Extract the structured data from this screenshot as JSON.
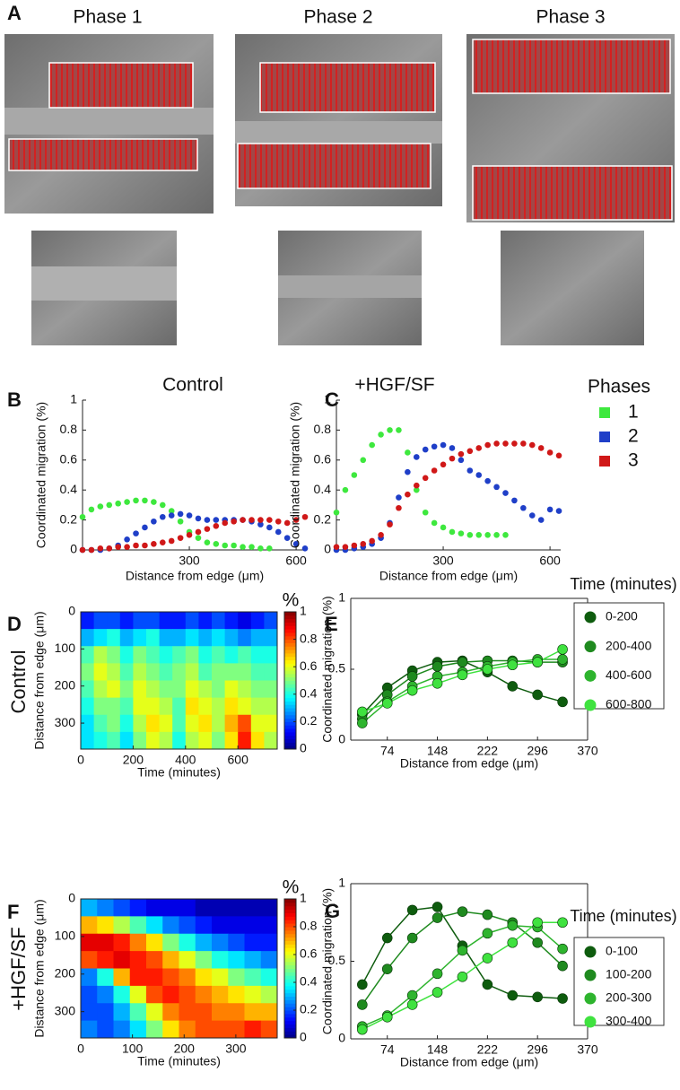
{
  "figure": {
    "panel": "A",
    "image_titles": [
      "Phase 1",
      "Phase 2",
      "Phase 3"
    ]
  },
  "chart_data": [
    {
      "type": "scatter",
      "panel": "B",
      "title": "Control",
      "x_label": "Distance from edge (μm)",
      "y_label": "Coordinated migration (%)",
      "xlim": [
        0,
        630
      ],
      "xticks": [
        300,
        600
      ],
      "ylim": [
        0,
        1
      ],
      "yticks": [
        0,
        0.2,
        0.4,
        0.6,
        0.8,
        1
      ],
      "series": [
        {
          "color": "#3ee83e",
          "x": [
            0,
            25,
            50,
            75,
            100,
            125,
            150,
            175,
            200,
            225,
            250,
            275,
            300,
            325,
            350,
            375,
            400,
            425,
            450,
            475,
            500,
            525
          ],
          "values": [
            0.22,
            0.27,
            0.29,
            0.3,
            0.31,
            0.32,
            0.33,
            0.33,
            0.32,
            0.3,
            0.26,
            0.19,
            0.12,
            0.08,
            0.05,
            0.04,
            0.03,
            0.03,
            0.02,
            0.02,
            0.01,
            0.01
          ]
        },
        {
          "color": "#1f3fc8",
          "x": [
            0,
            25,
            50,
            75,
            100,
            125,
            150,
            175,
            200,
            225,
            250,
            275,
            300,
            325,
            350,
            375,
            400,
            425,
            450,
            475,
            500,
            525,
            550,
            575,
            600,
            625
          ],
          "values": [
            0,
            0,
            0,
            0.01,
            0.03,
            0.07,
            0.11,
            0.15,
            0.19,
            0.22,
            0.23,
            0.24,
            0.23,
            0.21,
            0.2,
            0.2,
            0.2,
            0.2,
            0.2,
            0.19,
            0.17,
            0.15,
            0.12,
            0.08,
            0.04,
            0.01
          ]
        },
        {
          "color": "#d01818",
          "x": [
            0,
            25,
            50,
            75,
            100,
            125,
            150,
            175,
            200,
            225,
            250,
            275,
            300,
            325,
            350,
            375,
            400,
            425,
            450,
            475,
            500,
            525,
            550,
            575,
            600,
            625
          ],
          "values": [
            0,
            0,
            0.01,
            0.01,
            0.02,
            0.02,
            0.03,
            0.03,
            0.04,
            0.05,
            0.06,
            0.08,
            0.1,
            0.12,
            0.14,
            0.16,
            0.18,
            0.19,
            0.2,
            0.2,
            0.2,
            0.2,
            0.19,
            0.18,
            0.2,
            0.22
          ]
        }
      ]
    },
    {
      "type": "scatter",
      "panel": "C",
      "title": "+HGF/SF",
      "x_label": "Distance from edge (μm)",
      "y_label": "Coordinated migration (%)",
      "legend_title": "Phases",
      "xlim": [
        0,
        630
      ],
      "xticks": [
        300,
        600
      ],
      "ylim": [
        0,
        1
      ],
      "yticks": [
        0,
        0.2,
        0.4,
        0.6,
        0.8,
        1
      ],
      "series": [
        {
          "name": "1",
          "color": "#3ee83e",
          "x": [
            0,
            25,
            50,
            75,
            100,
            125,
            150,
            175,
            200,
            225,
            250,
            275,
            300,
            325,
            350,
            375,
            400,
            425,
            450,
            475
          ],
          "values": [
            0.25,
            0.4,
            0.5,
            0.6,
            0.7,
            0.77,
            0.8,
            0.8,
            0.65,
            0.4,
            0.25,
            0.18,
            0.15,
            0.12,
            0.11,
            0.1,
            0.1,
            0.1,
            0.1,
            0.1
          ]
        },
        {
          "name": "2",
          "color": "#1f3fc8",
          "x": [
            0,
            25,
            50,
            75,
            100,
            125,
            150,
            175,
            200,
            225,
            250,
            275,
            300,
            325,
            350,
            375,
            400,
            425,
            450,
            475,
            500,
            525,
            550,
            575,
            600,
            625
          ],
          "values": [
            0,
            0,
            0.01,
            0.02,
            0.04,
            0.08,
            0.18,
            0.35,
            0.52,
            0.62,
            0.67,
            0.69,
            0.7,
            0.68,
            0.6,
            0.53,
            0.5,
            0.46,
            0.42,
            0.38,
            0.33,
            0.28,
            0.23,
            0.2,
            0.27,
            0.26
          ]
        },
        {
          "name": "3",
          "color": "#d01818",
          "x": [
            0,
            25,
            50,
            75,
            100,
            125,
            150,
            175,
            200,
            225,
            250,
            275,
            300,
            325,
            350,
            375,
            400,
            425,
            450,
            475,
            500,
            525,
            550,
            575,
            600,
            625
          ],
          "values": [
            0.02,
            0.02,
            0.03,
            0.04,
            0.06,
            0.1,
            0.17,
            0.28,
            0.37,
            0.43,
            0.48,
            0.53,
            0.57,
            0.61,
            0.64,
            0.66,
            0.68,
            0.7,
            0.71,
            0.71,
            0.71,
            0.71,
            0.7,
            0.68,
            0.65,
            0.63
          ]
        }
      ]
    },
    {
      "type": "heatmap",
      "panel": "D",
      "side_label": "Control",
      "x_label": "Time (minutes)",
      "y_label": "Distance from edge (μm)",
      "colorbar_label": "%",
      "colorbar_ticks": [
        0,
        0.2,
        0.4,
        0.6,
        0.8,
        1
      ],
      "xlim": [
        0,
        750
      ],
      "xticks": [
        0,
        200,
        400,
        600
      ],
      "ylim": [
        0,
        370
      ],
      "yticks": [
        0,
        100,
        200,
        300
      ],
      "z": [
        [
          0.15,
          0.2,
          0.2,
          0.15,
          0.2,
          0.2,
          0.15,
          0.15,
          0.2,
          0.15,
          0.2,
          0.15,
          0.1,
          0.15,
          0.2
        ],
        [
          0.3,
          0.35,
          0.4,
          0.3,
          0.35,
          0.4,
          0.3,
          0.3,
          0.35,
          0.3,
          0.35,
          0.3,
          0.25,
          0.3,
          0.3
        ],
        [
          0.45,
          0.55,
          0.5,
          0.4,
          0.5,
          0.45,
          0.4,
          0.45,
          0.5,
          0.4,
          0.45,
          0.4,
          0.45,
          0.4,
          0.4
        ],
        [
          0.5,
          0.6,
          0.55,
          0.45,
          0.55,
          0.5,
          0.45,
          0.5,
          0.55,
          0.45,
          0.5,
          0.5,
          0.5,
          0.45,
          0.45
        ],
        [
          0.45,
          0.55,
          0.6,
          0.5,
          0.6,
          0.55,
          0.5,
          0.5,
          0.6,
          0.55,
          0.5,
          0.6,
          0.55,
          0.5,
          0.5
        ],
        [
          0.4,
          0.5,
          0.5,
          0.45,
          0.6,
          0.6,
          0.55,
          0.45,
          0.65,
          0.6,
          0.55,
          0.65,
          0.6,
          0.55,
          0.55
        ],
        [
          0.35,
          0.45,
          0.5,
          0.4,
          0.55,
          0.65,
          0.6,
          0.45,
          0.6,
          0.65,
          0.55,
          0.7,
          0.8,
          0.6,
          0.6
        ],
        [
          0.35,
          0.4,
          0.45,
          0.35,
          0.5,
          0.6,
          0.55,
          0.4,
          0.55,
          0.6,
          0.5,
          0.65,
          0.85,
          0.65,
          0.55
        ]
      ]
    },
    {
      "type": "line",
      "panel": "E",
      "legend_title": "Time (minutes)",
      "x_label": "Distance from edge (μm)",
      "y_label": "Coordinated migration (%)",
      "xlim": [
        20,
        370
      ],
      "xticks": [
        74,
        148,
        222,
        296,
        370
      ],
      "ylim": [
        0,
        1
      ],
      "yticks": [
        0,
        0.5,
        1
      ],
      "x": [
        37,
        74,
        111,
        148,
        185,
        222,
        259,
        296,
        333
      ],
      "series": [
        {
          "name": "0-200",
          "color": "#0e5c0e",
          "values": [
            0.18,
            0.37,
            0.49,
            0.55,
            0.56,
            0.48,
            0.38,
            0.32,
            0.27
          ]
        },
        {
          "name": "200-400",
          "color": "#1f8a1f",
          "values": [
            0.15,
            0.32,
            0.45,
            0.52,
            0.55,
            0.56,
            0.56,
            0.55,
            0.55
          ]
        },
        {
          "name": "400-600",
          "color": "#2eb42e",
          "values": [
            0.12,
            0.27,
            0.38,
            0.45,
            0.48,
            0.52,
            0.55,
            0.57,
            0.57
          ]
        },
        {
          "name": "600-800",
          "color": "#3fe23f",
          "values": [
            0.2,
            0.26,
            0.35,
            0.4,
            0.46,
            0.5,
            0.53,
            0.55,
            0.64
          ]
        }
      ]
    },
    {
      "type": "heatmap",
      "panel": "F",
      "side_label": "+HGF/SF",
      "x_label": "Time (minutes)",
      "y_label": "Distance from edge (μm)",
      "colorbar_label": "%",
      "colorbar_ticks": [
        0,
        0.2,
        0.4,
        0.6,
        0.8,
        1
      ],
      "xlim": [
        0,
        380
      ],
      "xticks": [
        0,
        100,
        200,
        300
      ],
      "ylim": [
        0,
        370
      ],
      "yticks": [
        0,
        100,
        200,
        300
      ],
      "z": [
        [
          0.3,
          0.25,
          0.2,
          0.15,
          0.1,
          0.1,
          0.1,
          0.05,
          0.05,
          0.05,
          0.05,
          0.05
        ],
        [
          0.7,
          0.65,
          0.55,
          0.45,
          0.35,
          0.25,
          0.2,
          0.15,
          0.1,
          0.1,
          0.1,
          0.1
        ],
        [
          0.9,
          0.9,
          0.85,
          0.75,
          0.65,
          0.5,
          0.4,
          0.3,
          0.25,
          0.2,
          0.15,
          0.15
        ],
        [
          0.8,
          0.85,
          0.9,
          0.85,
          0.8,
          0.7,
          0.6,
          0.5,
          0.4,
          0.35,
          0.3,
          0.25
        ],
        [
          0.25,
          0.4,
          0.7,
          0.85,
          0.85,
          0.8,
          0.75,
          0.65,
          0.6,
          0.5,
          0.45,
          0.4
        ],
        [
          0.2,
          0.25,
          0.4,
          0.6,
          0.8,
          0.85,
          0.8,
          0.75,
          0.7,
          0.65,
          0.6,
          0.55
        ],
        [
          0.2,
          0.2,
          0.3,
          0.45,
          0.6,
          0.75,
          0.8,
          0.8,
          0.75,
          0.75,
          0.7,
          0.7
        ],
        [
          0.25,
          0.2,
          0.25,
          0.35,
          0.5,
          0.65,
          0.75,
          0.8,
          0.8,
          0.8,
          0.85,
          0.8
        ]
      ]
    },
    {
      "type": "line",
      "panel": "G",
      "legend_title": "Time (minutes)",
      "x_label": "Distance from edge (μm)",
      "y_label": "Coordinated migration (%)",
      "xlim": [
        20,
        370
      ],
      "xticks": [
        74,
        148,
        222,
        296,
        370
      ],
      "ylim": [
        0,
        1
      ],
      "yticks": [
        0,
        0.5,
        1
      ],
      "x": [
        37,
        74,
        111,
        148,
        185,
        222,
        259,
        296,
        333
      ],
      "series": [
        {
          "name": "0-100",
          "color": "#0e5c0e",
          "values": [
            0.35,
            0.65,
            0.83,
            0.85,
            0.6,
            0.35,
            0.28,
            0.27,
            0.26
          ]
        },
        {
          "name": "100-200",
          "color": "#1f8a1f",
          "values": [
            0.22,
            0.45,
            0.65,
            0.78,
            0.82,
            0.8,
            0.75,
            0.62,
            0.47
          ]
        },
        {
          "name": "200-300",
          "color": "#2eb42e",
          "values": [
            0.08,
            0.15,
            0.28,
            0.42,
            0.57,
            0.68,
            0.73,
            0.72,
            0.58
          ]
        },
        {
          "name": "300-400",
          "color": "#3fe23f",
          "values": [
            0.06,
            0.14,
            0.22,
            0.3,
            0.4,
            0.52,
            0.62,
            0.75,
            0.75
          ]
        }
      ]
    }
  ]
}
